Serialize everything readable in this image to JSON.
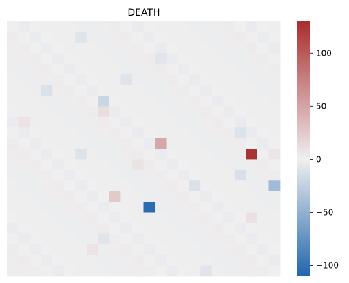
{
  "chart_data": {
    "type": "heatmap",
    "title": "DEATH",
    "xlabel": "",
    "ylabel": "",
    "colormap": "vlag",
    "colorbar": {
      "range": [
        -110,
        130
      ],
      "ticks": [
        -100,
        -50,
        0,
        50,
        100
      ],
      "tick_labels": [
        "−100",
        "−50",
        "0",
        "50",
        "100"
      ],
      "low_color": "#2166ac",
      "mid_color": "#f0eff0",
      "high_color": "#a92d2e"
    },
    "rows": 24,
    "cols": 24,
    "cells": [
      {
        "row": 11,
        "col": 13,
        "value": 48
      },
      {
        "row": 12,
        "col": 21,
        "value": 127
      },
      {
        "row": 15,
        "col": 23,
        "value": -42
      },
      {
        "row": 16,
        "col": 9,
        "value": 25
      },
      {
        "row": 17,
        "col": 12,
        "value": -105
      },
      {
        "row": 7,
        "col": 8,
        "value": -20
      },
      {
        "row": 8,
        "col": 8,
        "value": 12
      },
      {
        "row": 12,
        "col": 6,
        "value": -10
      },
      {
        "row": 14,
        "col": 20,
        "value": -12
      },
      {
        "row": 15,
        "col": 16,
        "value": -11
      },
      {
        "row": 10,
        "col": 20,
        "value": -10
      },
      {
        "row": 6,
        "col": 3,
        "value": -11
      },
      {
        "row": 5,
        "col": 10,
        "value": -9
      },
      {
        "row": 3,
        "col": 13,
        "value": -8
      },
      {
        "row": 1,
        "col": 6,
        "value": -9
      },
      {
        "row": 20,
        "col": 8,
        "value": -8
      },
      {
        "row": 21,
        "col": 7,
        "value": 8
      },
      {
        "row": 12,
        "col": 23,
        "value": 7
      },
      {
        "row": 13,
        "col": 11,
        "value": 8
      },
      {
        "row": 18,
        "col": 21,
        "value": 10
      },
      {
        "row": 9,
        "col": 1,
        "value": 8
      },
      {
        "row": 23,
        "col": 17,
        "value": -8
      }
    ]
  }
}
